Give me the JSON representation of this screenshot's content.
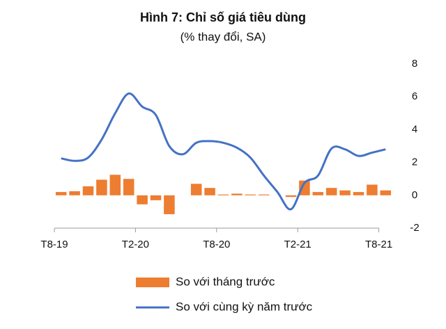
{
  "chart_data": {
    "type": "bar+line",
    "title": "Hình 7: Chỉ số giá tiêu dùng",
    "subtitle": "(% thay đổi, SA)",
    "categories": [
      "T8-19",
      null,
      null,
      null,
      null,
      null,
      "T2-20",
      null,
      null,
      null,
      null,
      null,
      "T8-20",
      null,
      null,
      null,
      null,
      null,
      "T2-21",
      null,
      null,
      null,
      null,
      null,
      "T8-21"
    ],
    "series": [
      {
        "name": "So với tháng trước",
        "type": "bar",
        "color": "#ed7d31",
        "values": [
          0.2,
          0.25,
          0.55,
          0.95,
          1.25,
          1.0,
          -0.55,
          -0.3,
          -1.15,
          0.0,
          0.7,
          0.45,
          0.05,
          0.1,
          0.05,
          0.05,
          0.0,
          -0.1,
          0.9,
          0.2,
          0.45,
          0.3,
          0.2,
          0.65,
          0.3
        ]
      },
      {
        "name": "So với cùng kỳ năm trước",
        "type": "line",
        "color": "#4472c4",
        "values": [
          2.25,
          2.1,
          2.3,
          3.4,
          5.0,
          6.2,
          5.4,
          4.9,
          3.0,
          2.5,
          3.2,
          3.3,
          3.2,
          2.9,
          2.3,
          1.2,
          0.2,
          -0.85,
          0.75,
          1.2,
          2.85,
          2.8,
          2.4,
          2.6,
          2.8
        ]
      }
    ],
    "ylim": [
      -2,
      8
    ],
    "yticks": [
      -2,
      0,
      2,
      4,
      6,
      8
    ],
    "y_axis_side": "right",
    "grid": false
  }
}
